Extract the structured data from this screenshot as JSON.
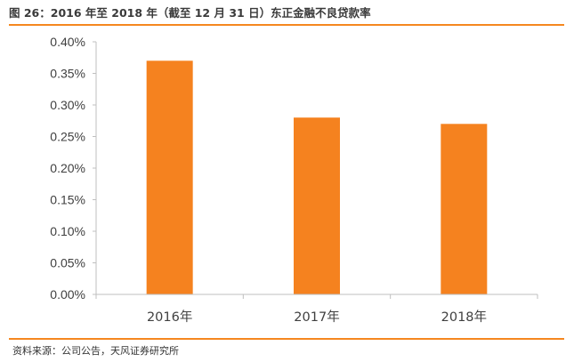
{
  "header": {
    "title": "图 26：2016 年至 2018 年（截至 12 月 31 日）东正金融不良贷款率"
  },
  "footer": {
    "source": "资料来源：公司公告，天风证券研究所"
  },
  "colors": {
    "bar": "#f5821f",
    "accent_rule": "#f5871f",
    "axis": "#bfbfbf",
    "text": "#404040"
  },
  "chart_data": {
    "type": "bar",
    "title": "图 26：2016 年至 2018 年（截至 12 月 31 日）东正金融不良贷款率",
    "xlabel": "",
    "ylabel": "",
    "categories": [
      "2016年",
      "2017年",
      "2018年"
    ],
    "values": [
      0.0037,
      0.0028,
      0.0027
    ],
    "ylim": [
      0,
      0.004
    ],
    "yticks": [
      0,
      0.0005,
      0.001,
      0.0015,
      0.002,
      0.0025,
      0.003,
      0.0035,
      0.004
    ],
    "ytick_labels": [
      "0.00%",
      "0.05%",
      "0.10%",
      "0.15%",
      "0.20%",
      "0.25%",
      "0.30%",
      "0.35%",
      "0.40%"
    ],
    "grid": false,
    "legend": "none"
  }
}
